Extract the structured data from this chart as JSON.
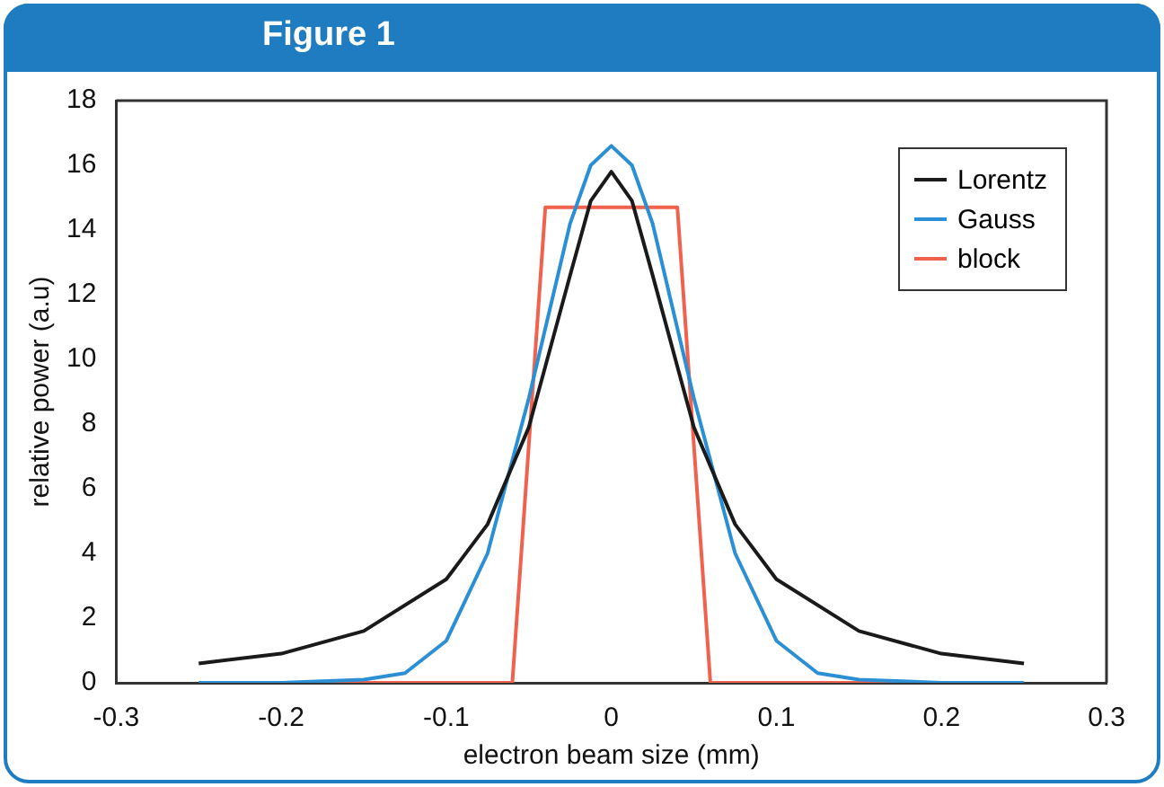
{
  "chart_data": {
    "type": "line",
    "title": "Figure 1",
    "xlabel": "electron beam size (mm)",
    "ylabel": "relative power (a.u)",
    "xlim": [
      -0.3,
      0.3
    ],
    "xticks": [
      -0.3,
      -0.2,
      -0.1,
      0,
      0.1,
      0.2,
      0.3
    ],
    "ylim": [
      0,
      18
    ],
    "yticks": [
      0,
      2,
      4,
      6,
      8,
      10,
      12,
      14,
      16,
      18
    ],
    "grid": false,
    "legend": "top right",
    "marker": "none",
    "line_style": "solid",
    "series": [
      {
        "name": "Lorentz",
        "color": "#1a1a1a",
        "x": [
          -0.25,
          -0.2,
          -0.15,
          -0.1,
          -0.075,
          -0.05,
          -0.025,
          -0.0125,
          0,
          0.0125,
          0.025,
          0.05,
          0.075,
          0.1,
          0.15,
          0.2,
          0.25
        ],
        "values": [
          0.6,
          0.9,
          1.6,
          3.2,
          4.9,
          7.9,
          12.6,
          14.9,
          15.8,
          14.9,
          12.6,
          7.9,
          4.9,
          3.2,
          1.6,
          0.9,
          0.6
        ]
      },
      {
        "name": "Gauss",
        "color": "#2b8fd6",
        "x": [
          -0.25,
          -0.2,
          -0.15,
          -0.125,
          -0.1,
          -0.075,
          -0.05,
          -0.025,
          -0.0125,
          0,
          0.0125,
          0.025,
          0.05,
          0.075,
          0.1,
          0.125,
          0.15,
          0.2,
          0.25
        ],
        "values": [
          0,
          0,
          0.1,
          0.3,
          1.3,
          4,
          8.8,
          14.2,
          16,
          16.6,
          16,
          14.2,
          8.8,
          4,
          1.3,
          0.3,
          0.1,
          0,
          0
        ]
      },
      {
        "name": "block",
        "color": "#f0624d",
        "x": [
          -0.25,
          -0.06,
          -0.04,
          0.04,
          0.06,
          0.25
        ],
        "values": [
          0,
          0,
          14.7,
          14.7,
          0,
          0
        ]
      }
    ]
  }
}
